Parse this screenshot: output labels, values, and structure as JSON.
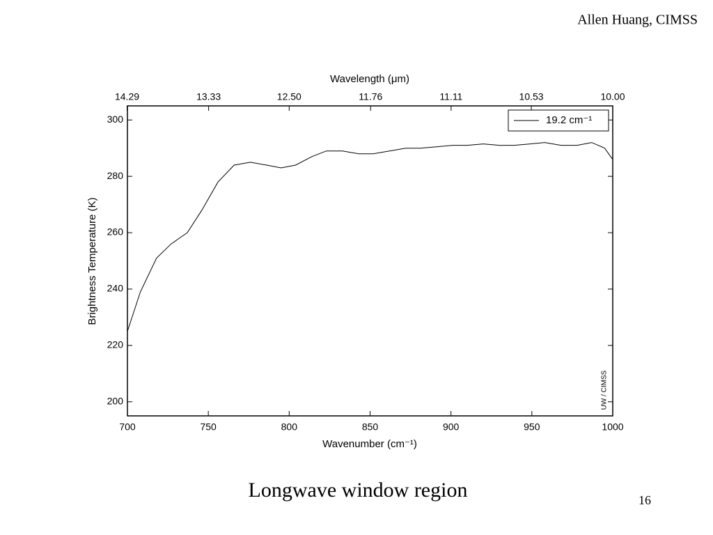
{
  "header": {
    "author": "Allen Huang, CIMSS"
  },
  "chart_data": {
    "type": "line",
    "x_top_label": "Wavelength (μm)",
    "x_label": "Wavenumber (cm⁻¹)",
    "y_label": "Brightness Temperature (K)",
    "watermark": "UW / CIMSS",
    "x": [
      700,
      708,
      718,
      727,
      737,
      746,
      756,
      766,
      776,
      786,
      795,
      804,
      814,
      823,
      833,
      843,
      852,
      862,
      872,
      881,
      891,
      901,
      910,
      920,
      930,
      939,
      949,
      958,
      968,
      978,
      987,
      995,
      1000
    ],
    "series": [
      {
        "name": "19.2 cm⁻¹",
        "color": "#000000",
        "values": [
          225,
          239,
          251,
          256,
          260,
          268,
          278,
          284,
          285,
          284,
          283,
          284,
          287,
          289,
          289,
          288,
          288,
          289,
          290,
          290,
          290.5,
          291,
          291,
          291.5,
          291,
          291,
          291.5,
          292,
          291,
          291,
          292,
          290,
          286
        ]
      }
    ],
    "xlim": [
      700,
      1000
    ],
    "xticks": [
      700,
      750,
      800,
      850,
      900,
      950,
      1000
    ],
    "x2ticks": [
      14.29,
      13.33,
      {
        "value": 12.5,
        "label": "12.50"
      },
      11.76,
      11.11,
      10.53,
      {
        "value": 10,
        "label": "10.00"
      }
    ],
    "ylim": [
      195,
      305
    ],
    "yticks": [
      200,
      220,
      240,
      260,
      280,
      300
    ],
    "legend": "upper right"
  },
  "caption": "Longwave window region",
  "page_number": 16
}
